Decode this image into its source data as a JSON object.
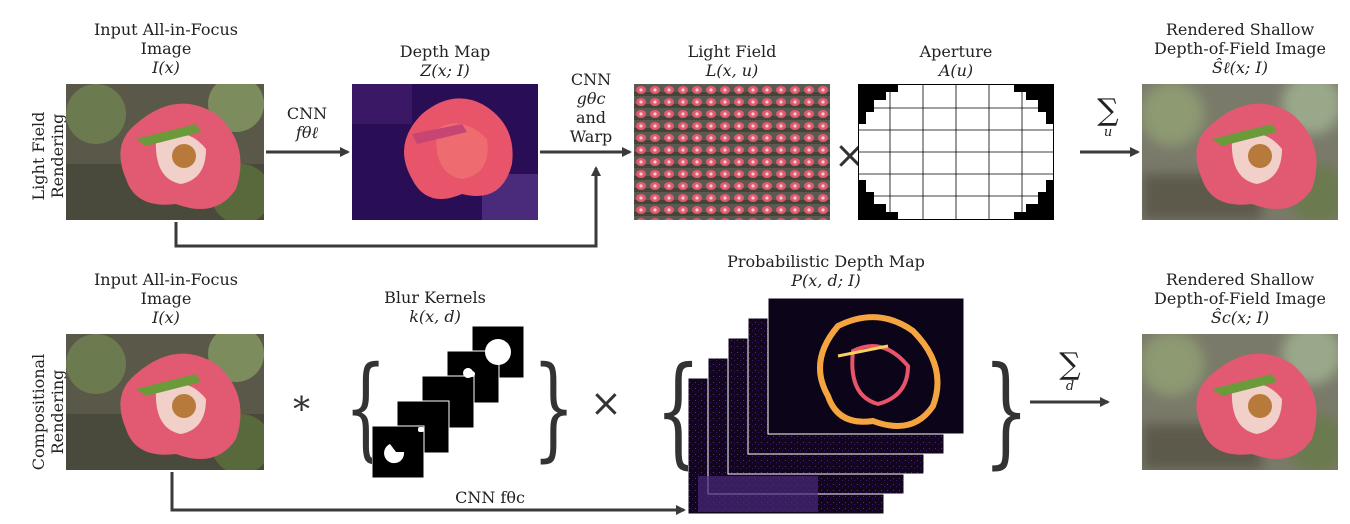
{
  "row_labels": {
    "top": [
      "Light Field",
      "Rendering"
    ],
    "bottom": [
      "Compositional",
      "Rendering"
    ]
  },
  "top_row": {
    "input": {
      "line1": "Input All-in-Focus",
      "line2": "Image",
      "math": "I(x)"
    },
    "depth": {
      "line1": "Depth Map",
      "math": "Z(x; I)"
    },
    "light_field": {
      "line1": "Light Field",
      "math": "L(x, u)"
    },
    "aperture": {
      "line1": "Aperture",
      "math": "A(u)"
    },
    "output": {
      "line1": "Rendered Shallow",
      "line2": "Depth-of-Field Image",
      "math": "Ŝℓ(x; I)"
    },
    "arrow1": {
      "line1": "CNN",
      "line2": "fθℓ"
    },
    "arrow2": {
      "line1": "CNN",
      "line2": "gθc",
      "line3": "and",
      "line4": "Warp"
    },
    "sum": {
      "symbol": "∑",
      "sub": "u"
    },
    "times": "×"
  },
  "bottom_row": {
    "input": {
      "line1": "Input All-in-Focus",
      "line2": "Image",
      "math": "I(x)"
    },
    "kernels": {
      "line1": "Blur Kernels",
      "math": "k(x, d)"
    },
    "prob_depth": {
      "line1": "Probabilistic Depth Map",
      "math": "P(x, d; I)"
    },
    "output": {
      "line1": "Rendered Shallow",
      "line2": "Depth-of-Field Image",
      "math": "Ŝc(x; I)"
    },
    "conv": "∗",
    "times": "×",
    "sum": {
      "symbol": "∑",
      "sub": "d"
    },
    "cnn_label": "CNN fθc"
  },
  "colors": {
    "arrow": "#3a3a3a",
    "depth_bg": "#2a0e55",
    "depth_fg": "#e8546a",
    "flower": "#e25a72",
    "foliage": "#5d6b3f"
  }
}
